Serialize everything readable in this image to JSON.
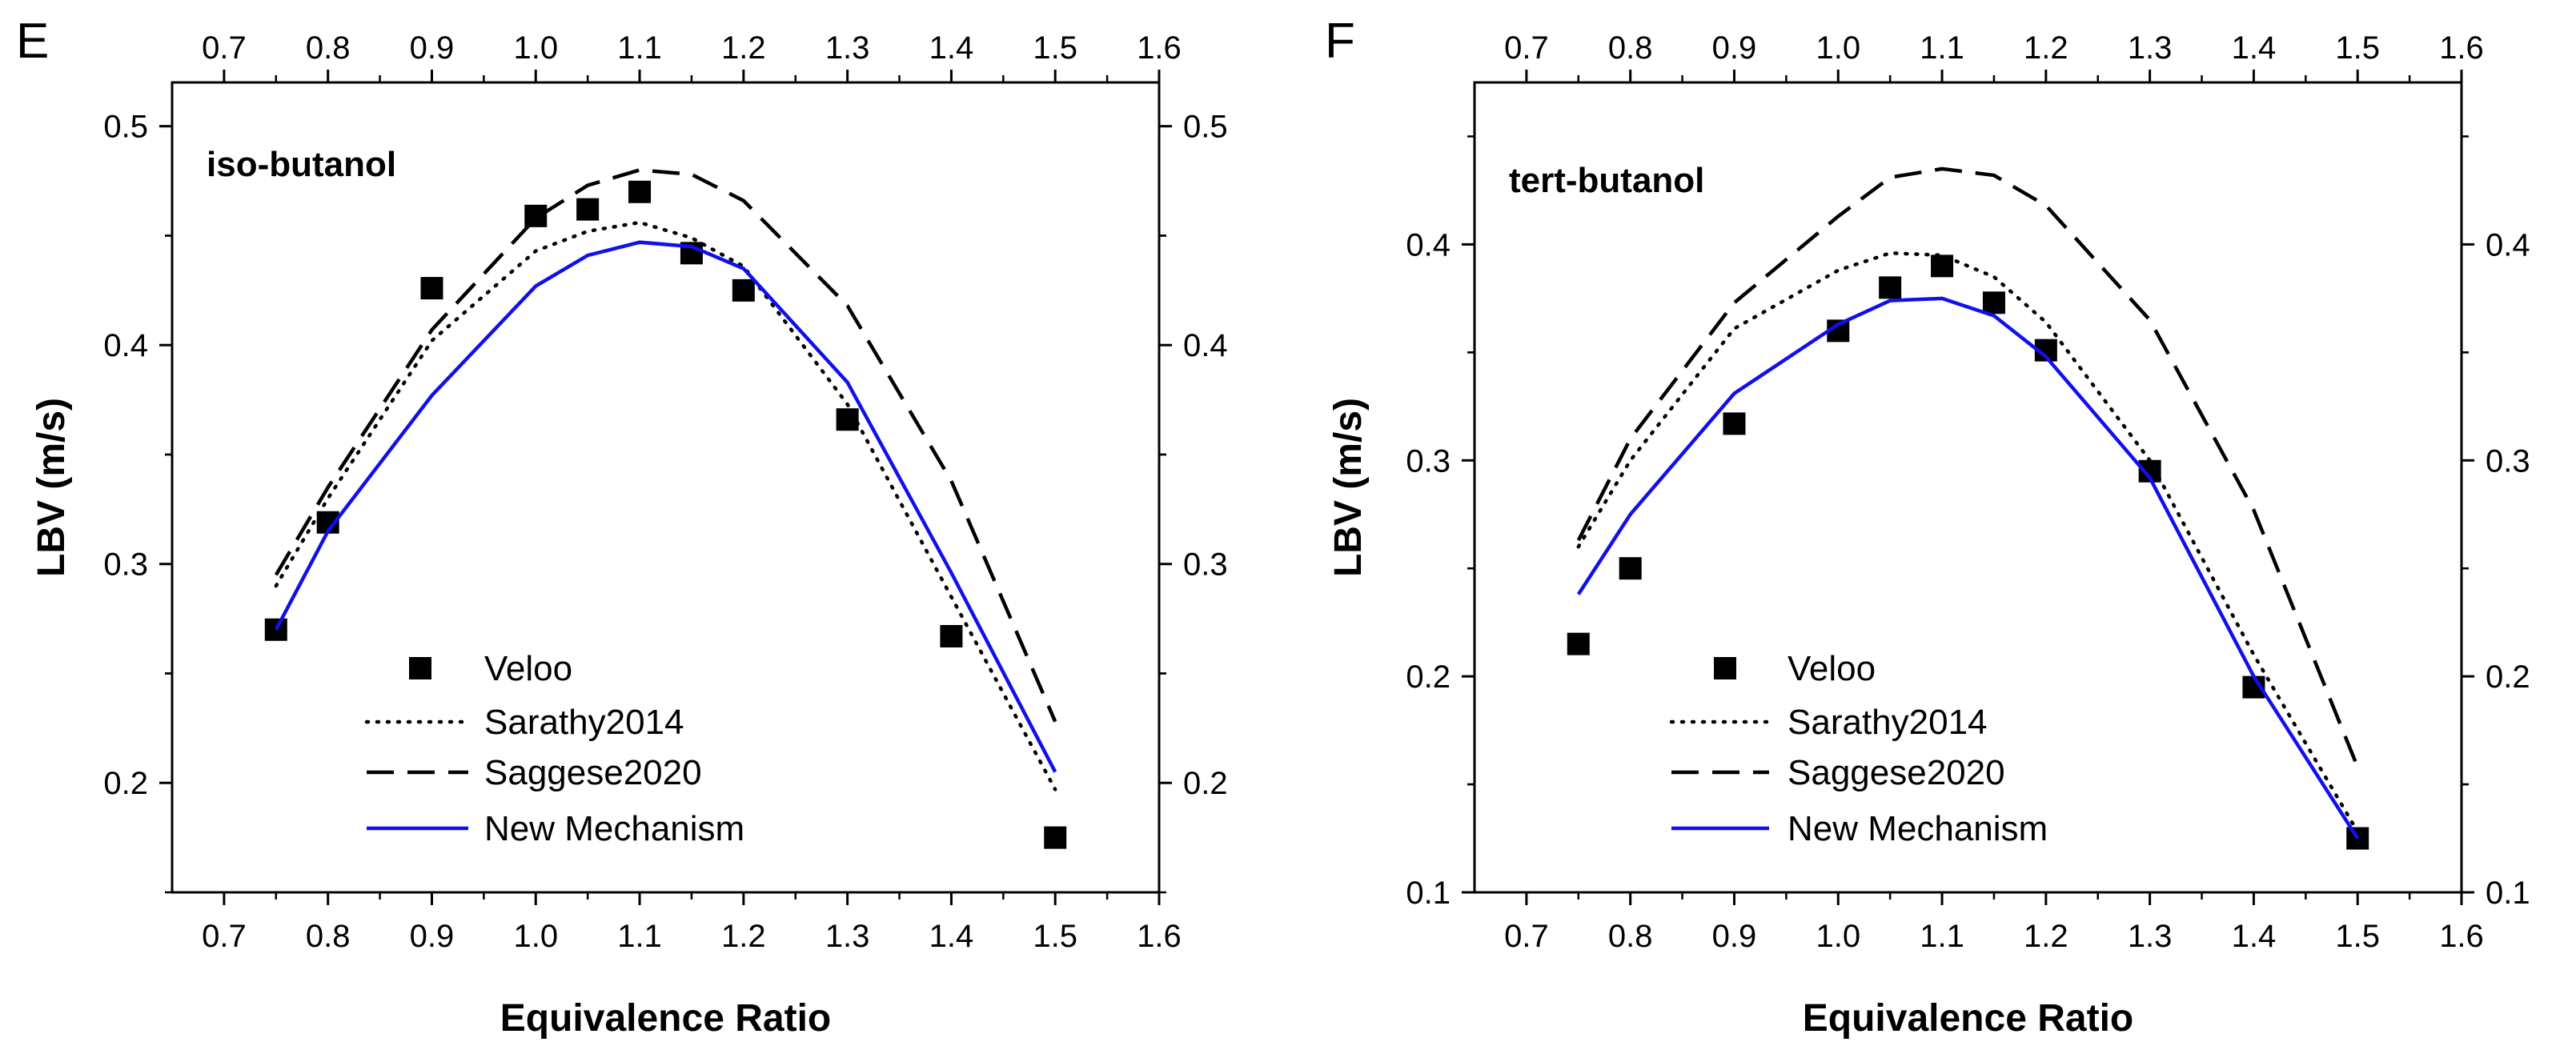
{
  "chart_data": [
    {
      "type": "line",
      "panel_label": "E",
      "title": "iso-butanol",
      "xlabel": "Equivalence Ratio",
      "ylabel": "LBV (m/s)",
      "xlim": [
        0.65,
        1.6
      ],
      "ylim": [
        0.15,
        0.52
      ],
      "x_ticks": [
        "0.7",
        "0.8",
        "0.9",
        "1.0",
        "1.1",
        "1.2",
        "1.3",
        "1.4",
        "1.5",
        "1.6"
      ],
      "y_ticks": [
        "0.2",
        "0.3",
        "0.4",
        "0.5"
      ],
      "legend": [
        "Veloo",
        "Sarathy2014",
        "Saggese2020",
        "New Mechanism"
      ],
      "series": [
        {
          "name": "Veloo",
          "style": "marker",
          "x": [
            0.75,
            0.8,
            0.9,
            1.0,
            1.05,
            1.1,
            1.15,
            1.2,
            1.3,
            1.4,
            1.5
          ],
          "y": [
            0.27,
            0.319,
            0.426,
            0.459,
            0.462,
            0.47,
            0.442,
            0.425,
            0.366,
            0.267,
            0.175
          ]
        },
        {
          "name": "Sarathy2014",
          "style": "dotted",
          "x": [
            0.75,
            0.8,
            0.9,
            1.0,
            1.05,
            1.1,
            1.15,
            1.2,
            1.3,
            1.4,
            1.5
          ],
          "y": [
            0.29,
            0.33,
            0.402,
            0.443,
            0.452,
            0.456,
            0.449,
            0.436,
            0.373,
            0.285,
            0.197
          ]
        },
        {
          "name": "Saggese2020",
          "style": "dashed",
          "x": [
            0.75,
            0.8,
            0.9,
            1.0,
            1.05,
            1.1,
            1.15,
            1.2,
            1.3,
            1.4,
            1.5
          ],
          "y": [
            0.295,
            0.335,
            0.407,
            0.458,
            0.473,
            0.48,
            0.478,
            0.466,
            0.418,
            0.338,
            0.228
          ]
        },
        {
          "name": "New Mechanism",
          "style": "solid",
          "x": [
            0.75,
            0.8,
            0.9,
            1.0,
            1.05,
            1.1,
            1.15,
            1.2,
            1.3,
            1.4,
            1.5
          ],
          "y": [
            0.27,
            0.315,
            0.377,
            0.427,
            0.441,
            0.447,
            0.445,
            0.435,
            0.383,
            0.296,
            0.205
          ]
        }
      ]
    },
    {
      "type": "line",
      "panel_label": "F",
      "title": "tert-butanol",
      "xlabel": "Equivalence Ratio",
      "ylabel": "LBV (m/s)",
      "xlim": [
        0.65,
        1.6
      ],
      "ylim": [
        0.1,
        0.475
      ],
      "x_ticks": [
        "0.7",
        "0.8",
        "0.9",
        "1.0",
        "1.1",
        "1.2",
        "1.3",
        "1.4",
        "1.5",
        "1.6"
      ],
      "y_ticks": [
        "0.1",
        "0.2",
        "0.3",
        "0.4"
      ],
      "legend": [
        "Veloo",
        "Sarathy2014",
        "Saggese2020",
        "New Mechanism"
      ],
      "series": [
        {
          "name": "Veloo",
          "style": "marker",
          "x": [
            0.75,
            0.8,
            0.9,
            1.0,
            1.05,
            1.1,
            1.15,
            1.2,
            1.3,
            1.4,
            1.5
          ],
          "y": [
            0.215,
            0.25,
            0.317,
            0.36,
            0.38,
            0.39,
            0.373,
            0.351,
            0.295,
            0.195,
            0.125
          ]
        },
        {
          "name": "Sarathy2014",
          "style": "dotted",
          "x": [
            0.75,
            0.8,
            0.9,
            1.0,
            1.05,
            1.1,
            1.15,
            1.2,
            1.3,
            1.4,
            1.5
          ],
          "y": [
            0.26,
            0.3,
            0.361,
            0.388,
            0.396,
            0.395,
            0.385,
            0.364,
            0.3,
            0.21,
            0.128
          ]
        },
        {
          "name": "Saggese2020",
          "style": "dashed",
          "x": [
            0.75,
            0.8,
            0.9,
            1.0,
            1.05,
            1.1,
            1.15,
            1.2,
            1.3,
            1.4,
            1.5
          ],
          "y": [
            0.263,
            0.31,
            0.373,
            0.413,
            0.431,
            0.435,
            0.432,
            0.418,
            0.365,
            0.277,
            0.158
          ]
        },
        {
          "name": "New Mechanism",
          "style": "solid",
          "x": [
            0.75,
            0.8,
            0.9,
            1.0,
            1.05,
            1.1,
            1.15,
            1.2,
            1.3,
            1.4,
            1.5
          ],
          "y": [
            0.238,
            0.275,
            0.331,
            0.363,
            0.374,
            0.375,
            0.367,
            0.348,
            0.292,
            0.2,
            0.125
          ]
        }
      ]
    }
  ]
}
